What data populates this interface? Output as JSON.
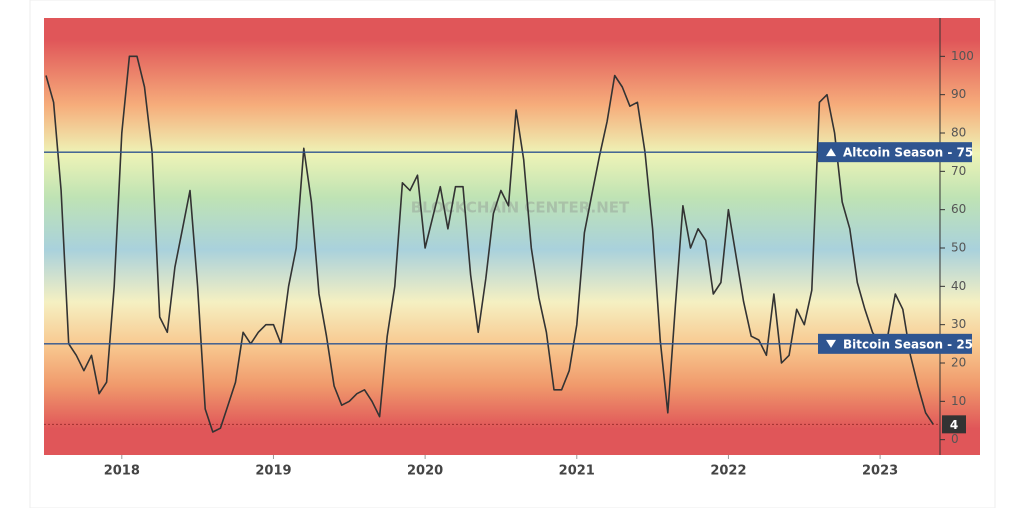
{
  "chart_data": {
    "type": "line",
    "watermark": "BLOCKCHAIN CENTER.NET",
    "x": [
      2017.5,
      2017.55,
      2017.6,
      2017.65,
      2017.7,
      2017.75,
      2017.8,
      2017.85,
      2017.9,
      2017.95,
      2018.0,
      2018.05,
      2018.1,
      2018.15,
      2018.2,
      2018.25,
      2018.3,
      2018.35,
      2018.4,
      2018.45,
      2018.5,
      2018.55,
      2018.6,
      2018.65,
      2018.7,
      2018.75,
      2018.8,
      2018.85,
      2018.9,
      2018.95,
      2019.0,
      2019.05,
      2019.1,
      2019.15,
      2019.2,
      2019.25,
      2019.3,
      2019.35,
      2019.4,
      2019.45,
      2019.5,
      2019.55,
      2019.6,
      2019.65,
      2019.7,
      2019.75,
      2019.8,
      2019.85,
      2019.9,
      2019.95,
      2020.0,
      2020.05,
      2020.1,
      2020.15,
      2020.2,
      2020.25,
      2020.3,
      2020.35,
      2020.4,
      2020.45,
      2020.5,
      2020.55,
      2020.6,
      2020.65,
      2020.7,
      2020.75,
      2020.8,
      2020.85,
      2020.9,
      2020.95,
      2021.0,
      2021.05,
      2021.1,
      2021.15,
      2021.2,
      2021.25,
      2021.3,
      2021.35,
      2021.4,
      2021.45,
      2021.5,
      2021.55,
      2021.6,
      2021.65,
      2021.7,
      2021.75,
      2021.8,
      2021.85,
      2021.9,
      2021.95,
      2022.0,
      2022.05,
      2022.1,
      2022.15,
      2022.2,
      2022.25,
      2022.3,
      2022.35,
      2022.4,
      2022.45,
      2022.5,
      2022.55,
      2022.6,
      2022.65,
      2022.7,
      2022.75,
      2022.8,
      2022.85,
      2022.9,
      2022.95,
      2023.0,
      2023.05,
      2023.1,
      2023.15,
      2023.2,
      2023.25,
      2023.3,
      2023.35
    ],
    "values": [
      95,
      88,
      65,
      25,
      22,
      18,
      22,
      12,
      15,
      40,
      80,
      100,
      100,
      92,
      75,
      32,
      28,
      45,
      55,
      65,
      40,
      8,
      2,
      3,
      9,
      15,
      28,
      25,
      28,
      30,
      30,
      25,
      40,
      50,
      76,
      62,
      38,
      27,
      14,
      9,
      10,
      12,
      13,
      10,
      6,
      27,
      40,
      67,
      65,
      69,
      50,
      58,
      66,
      55,
      66,
      66,
      43,
      28,
      42,
      59,
      65,
      61,
      86,
      73,
      50,
      37,
      28,
      13,
      13,
      18,
      30,
      54,
      64,
      74,
      83,
      95,
      92,
      87,
      88,
      75,
      55,
      26,
      7,
      35,
      61,
      50,
      55,
      52,
      38,
      41,
      60,
      48,
      36,
      27,
      26,
      22,
      38,
      20,
      22,
      34,
      30,
      39,
      88,
      90,
      80,
      62,
      55,
      41,
      34,
      28,
      25,
      27,
      38,
      34,
      22,
      14,
      7,
      4
    ],
    "color": "#333333",
    "xlim": [
      2017.487,
      2023.395
    ],
    "xticks": [
      2018,
      2019,
      2020,
      2021,
      2022,
      2023
    ],
    "ylim": [
      -4,
      110
    ],
    "yticks": [
      0,
      10,
      20,
      30,
      40,
      50,
      60,
      70,
      80,
      90,
      100
    ],
    "reference_lines": [
      {
        "value": 75,
        "label": "Altcoin Season - 75",
        "color": "#2f5590"
      },
      {
        "value": 25,
        "label": "Bitcoin Season - 25",
        "color": "#2f5590"
      }
    ],
    "current": {
      "value": 4,
      "color": "#333333"
    }
  }
}
